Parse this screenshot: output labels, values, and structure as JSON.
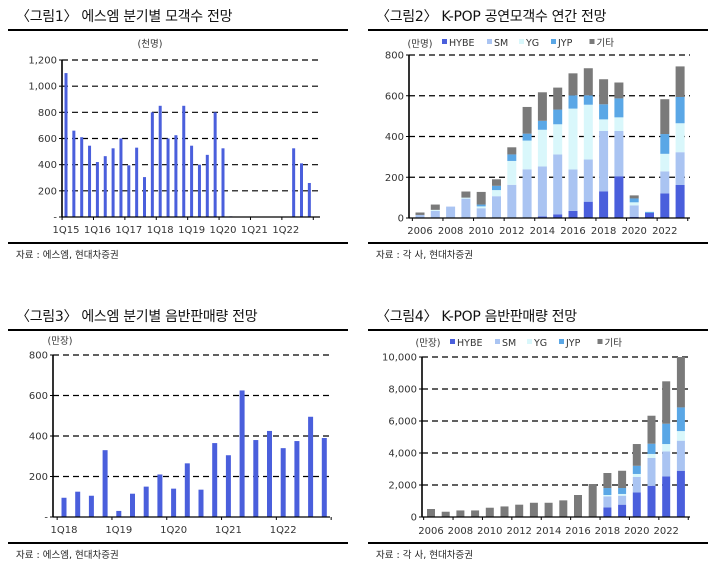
{
  "chart_data": [
    {
      "type": "bar",
      "title": "〈그림1〉 에스엠 분기별 모객수 전망",
      "ylabel": "(천명)",
      "xlabel": "",
      "ylim": [
        0,
        1200
      ],
      "yticks": [
        0,
        200,
        400,
        600,
        800,
        1000,
        1200
      ],
      "ytick_labels": [
        "-",
        "200",
        "400",
        "600",
        "800",
        "1,000",
        "1,200"
      ],
      "grid": true,
      "categories": [
        "1Q15",
        "2Q15",
        "3Q15",
        "4Q15",
        "1Q16",
        "2Q16",
        "3Q16",
        "4Q16",
        "1Q17",
        "2Q17",
        "3Q17",
        "4Q17",
        "1Q18",
        "2Q18",
        "3Q18",
        "4Q18",
        "1Q19",
        "2Q19",
        "3Q19",
        "4Q19",
        "1Q20",
        "2Q20",
        "3Q20",
        "4Q20",
        "1Q21",
        "2Q21",
        "3Q21",
        "4Q21",
        "1Q22",
        "2Q22",
        "3Q22",
        "4Q22"
      ],
      "xtick_labels": [
        "1Q15",
        "1Q16",
        "1Q17",
        "1Q18",
        "1Q19",
        "1Q20",
        "1Q21",
        "1Q22"
      ],
      "values": [
        1100,
        660,
        610,
        545,
        420,
        465,
        525,
        600,
        395,
        530,
        305,
        800,
        850,
        600,
        625,
        850,
        545,
        400,
        475,
        800,
        525,
        5,
        0,
        0,
        0,
        0,
        0,
        0,
        0,
        525,
        410,
        260
      ],
      "color": "#4a5fdc",
      "source": "자료 : 에스엠, 현대차증권"
    },
    {
      "type": "bar",
      "stacked": true,
      "title": "〈그림2〉 K-POP 공연모객수 연간 전망",
      "ylabel": "(만명)",
      "xlabel": "",
      "ylim": [
        0,
        800
      ],
      "yticks": [
        0,
        200,
        400,
        600,
        800
      ],
      "ytick_labels": [
        "0",
        "200",
        "400",
        "600",
        "800"
      ],
      "grid": true,
      "legend_position": "top",
      "categories": [
        "2006",
        "2007",
        "2008",
        "2009",
        "2010",
        "2011",
        "2012",
        "2013",
        "2014",
        "2015",
        "2016",
        "2017",
        "2018",
        "2019",
        "2020",
        "2021",
        "2022",
        "2023"
      ],
      "xtick_labels": [
        "2006",
        "2008",
        "2010",
        "2012",
        "2014",
        "2016",
        "2018",
        "2020",
        "2022"
      ],
      "series": [
        {
          "name": "HYBE",
          "color": "#4a5fdc",
          "values": [
            0,
            0,
            0,
            0,
            0,
            0,
            0,
            0,
            8,
            18,
            35,
            80,
            131,
            205,
            6,
            25,
            121,
            162
          ]
        },
        {
          "name": "SM",
          "color": "#aac4f2",
          "values": [
            15,
            35,
            56,
            95,
            48,
            107,
            163,
            239,
            245,
            294,
            203,
            207,
            296,
            222,
            56,
            0,
            108,
            161
          ]
        },
        {
          "name": "YG",
          "color": "#d9f7fb",
          "values": [
            0,
            5,
            0,
            5,
            9,
            30,
            117,
            141,
            180,
            148,
            299,
            269,
            57,
            67,
            15,
            0,
            86,
            142
          ]
        },
        {
          "name": "JYP",
          "color": "#5aa7e6",
          "values": [
            0,
            0,
            0,
            0,
            9,
            21,
            32,
            34,
            44,
            72,
            65,
            46,
            74,
            93,
            19,
            5,
            97,
            129
          ]
        },
        {
          "name": "기타",
          "color": "#7a7a7a",
          "values": [
            12,
            26,
            0,
            30,
            62,
            32,
            35,
            131,
            140,
            108,
            108,
            133,
            123,
            78,
            15,
            0,
            171,
            150
          ]
        }
      ],
      "source": "자료 : 각 사, 현대차증권"
    },
    {
      "type": "bar",
      "title": "〈그림3〉 에스엠 분기별 음반판매량 전망",
      "ylabel": "(만장)",
      "xlabel": "",
      "ylim": [
        0,
        800
      ],
      "yticks": [
        0,
        200,
        400,
        600,
        800
      ],
      "ytick_labels": [
        "-",
        "200",
        "400",
        "600",
        "800"
      ],
      "grid": true,
      "categories": [
        "1Q18",
        "2Q18",
        "3Q18",
        "4Q18",
        "1Q19",
        "2Q19",
        "3Q19",
        "4Q19",
        "1Q20",
        "2Q20",
        "3Q20",
        "4Q20",
        "1Q21",
        "2Q21",
        "3Q21",
        "4Q21",
        "1Q22",
        "2Q22",
        "3Q22",
        "4Q22"
      ],
      "xtick_labels": [
        "1Q18",
        "1Q19",
        "1Q20",
        "1Q21",
        "1Q22"
      ],
      "values": [
        95,
        125,
        105,
        330,
        30,
        115,
        150,
        210,
        140,
        265,
        135,
        365,
        305,
        625,
        380,
        425,
        340,
        375,
        495,
        390
      ],
      "color": "#4a5fdc",
      "source": "자료 : 에스엠, 현대차증권"
    },
    {
      "type": "bar",
      "stacked": true,
      "title": "〈그림4〉 K-POP 음반판매량 전망",
      "ylabel": "(만장)",
      "xlabel": "",
      "ylim": [
        0,
        10000
      ],
      "yticks": [
        0,
        2000,
        4000,
        6000,
        8000,
        10000
      ],
      "ytick_labels": [
        "0",
        "2,000",
        "4,000",
        "6,000",
        "8,000",
        "10,000"
      ],
      "grid": true,
      "legend_position": "top",
      "categories": [
        "2006",
        "2007",
        "2008",
        "2009",
        "2010",
        "2011",
        "2012",
        "2013",
        "2014",
        "2015",
        "2016",
        "2017",
        "2018",
        "2019",
        "2020",
        "2021",
        "2022",
        "2023"
      ],
      "xtick_labels": [
        "2006",
        "2008",
        "2010",
        "2012",
        "2014",
        "2016",
        "2018",
        "2020",
        "2022"
      ],
      "series": [
        {
          "name": "HYBE",
          "color": "#4a5fdc",
          "values": [
            0,
            0,
            0,
            0,
            0,
            0,
            0,
            0,
            0,
            0,
            0,
            0,
            600,
            770,
            1540,
            1950,
            2540,
            2890
          ]
        },
        {
          "name": "SM",
          "color": "#aac4f2",
          "values": [
            0,
            0,
            0,
            0,
            0,
            0,
            0,
            0,
            0,
            0,
            0,
            0,
            690,
            560,
            960,
            1740,
            1560,
            1880
          ]
        },
        {
          "name": "YG",
          "color": "#d9f7fb",
          "values": [
            0,
            0,
            0,
            0,
            0,
            0,
            0,
            0,
            0,
            0,
            0,
            0,
            85,
            110,
            190,
            250,
            460,
            600
          ]
        },
        {
          "name": "JYP",
          "color": "#5aa7e6",
          "values": [
            0,
            0,
            0,
            0,
            0,
            0,
            0,
            0,
            0,
            0,
            0,
            0,
            435,
            370,
            510,
            640,
            1270,
            1480
          ]
        },
        {
          "name": "기타",
          "color": "#7a7a7a",
          "values": [
            500,
            330,
            410,
            410,
            580,
            660,
            770,
            890,
            890,
            1040,
            1375,
            2060,
            940,
            1080,
            1360,
            1750,
            2650,
            3150
          ]
        }
      ],
      "source": "자료 : 각 사, 현대차증권"
    }
  ]
}
